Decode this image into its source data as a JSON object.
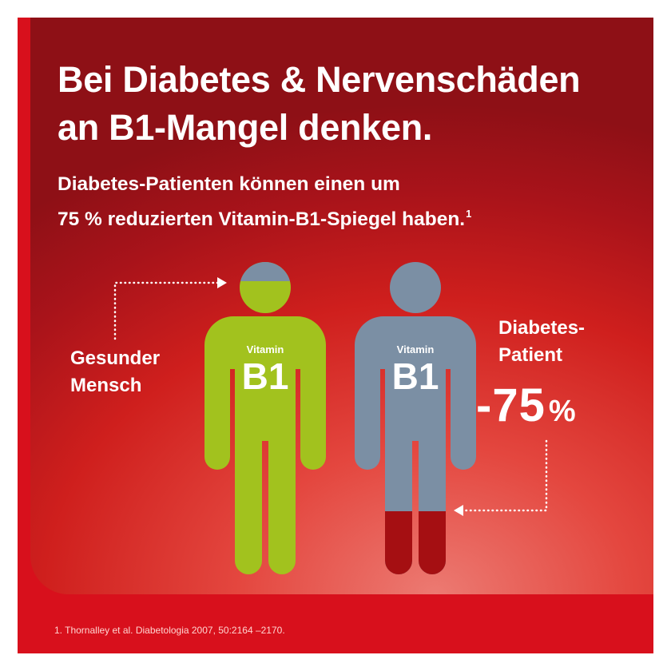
{
  "title_line1": "Bei Diabetes & Nervenschäden",
  "title_line2": "an B1-Mangel denken.",
  "subtitle_line1": "Diabetes-Patienten können einen um",
  "subtitle_line2": "75 % reduzierten Vitamin-B1-Spiegel haben.",
  "subtitle_footnote_mark": "1",
  "healthy_figure": {
    "label_line1": "Gesunder",
    "label_line2": "Mensch",
    "vitamin_word": "Vitamin",
    "vitamin_code": "B1",
    "color": "#a2c21e"
  },
  "patient_figure": {
    "label_line1": "Diabetes-",
    "label_line2": "Patient",
    "vitamin_word": "Vitamin",
    "vitamin_code": "B1",
    "color": "#7b8fa4",
    "remaining_fill_color": "#a50f12",
    "remaining_level_fraction": 0.25
  },
  "reduction_value": "-75",
  "reduction_unit": "%",
  "footnote": "1. Thornalley et al. Diabetologia 2007, 50:2164 –2170.",
  "colors": {
    "background_red": "#d8101c",
    "healthy_green": "#a2c21e",
    "patient_grey_blue": "#7b8fa4",
    "deficit_dark_red": "#a50f12"
  }
}
